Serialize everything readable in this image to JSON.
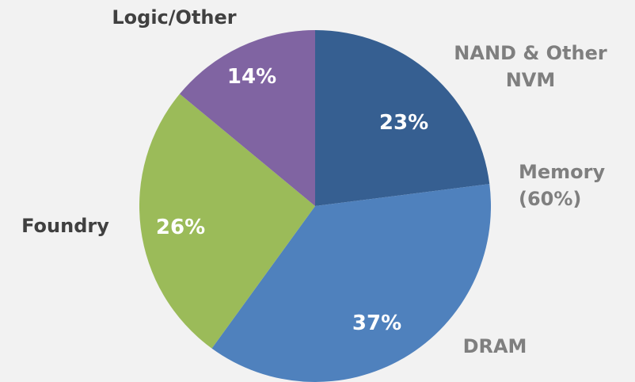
{
  "chart_data": {
    "type": "pie",
    "categories": [
      "NAND & Other NVM",
      "DRAM",
      "Foundry",
      "Logic/Other"
    ],
    "values": [
      23,
      37,
      26,
      14
    ],
    "value_labels": [
      "23%",
      "37%",
      "26%",
      "14%"
    ],
    "colors": [
      "#365f91",
      "#4f81bd",
      "#9bbb59",
      "#8064a2"
    ],
    "annotations": [
      "Memory (60%)"
    ]
  }
}
